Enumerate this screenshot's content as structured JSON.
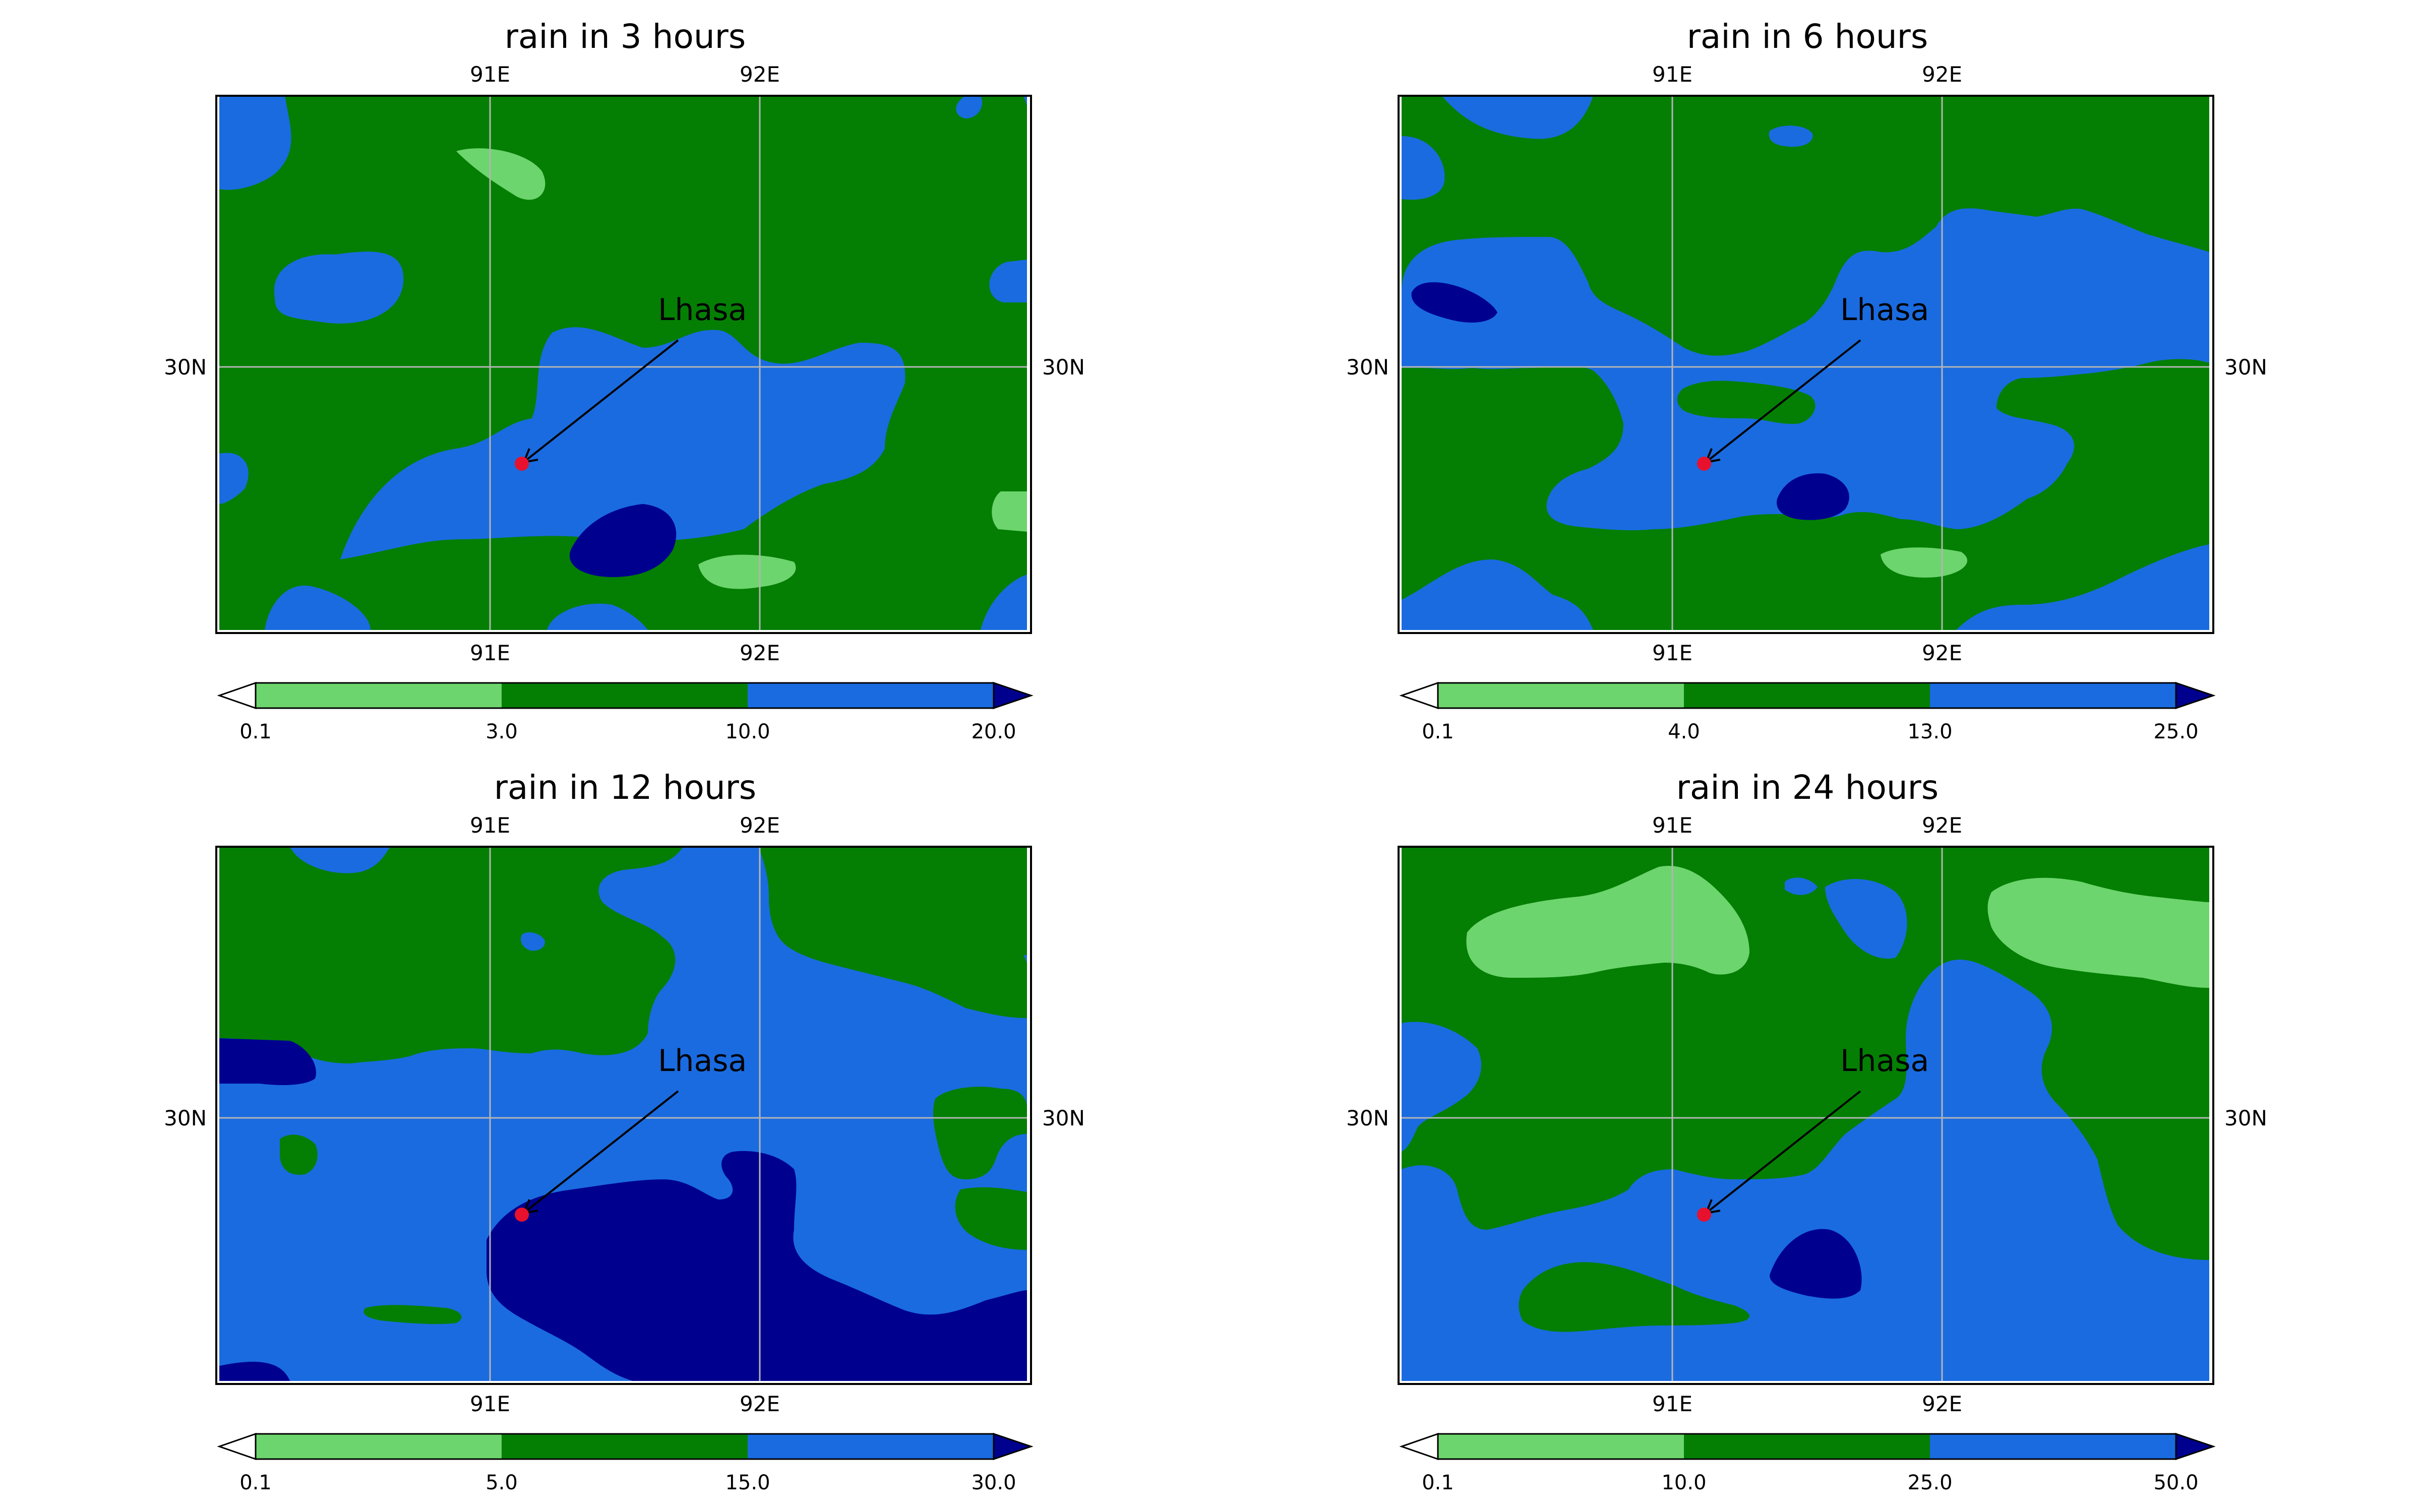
{
  "panels": [
    {
      "title": "rain in 3 hours",
      "lon_labels": [
        "91E",
        "92E"
      ],
      "lat_label": "30N",
      "city": "Lhasa",
      "colorbar": {
        "ticks": [
          "0.1",
          "3.0",
          "10.0",
          "20.0"
        ]
      }
    },
    {
      "title": "rain in 6 hours",
      "lon_labels": [
        "91E",
        "92E"
      ],
      "lat_label": "30N",
      "city": "Lhasa",
      "colorbar": {
        "ticks": [
          "0.1",
          "4.0",
          "13.0",
          "25.0"
        ]
      }
    },
    {
      "title": "rain in 12 hours",
      "lon_labels": [
        "91E",
        "92E"
      ],
      "lat_label": "30N",
      "city": "Lhasa",
      "colorbar": {
        "ticks": [
          "0.1",
          "5.0",
          "15.0",
          "30.0"
        ]
      }
    },
    {
      "title": "rain in 24 hours",
      "lon_labels": [
        "91E",
        "92E"
      ],
      "lat_label": "30N",
      "city": "Lhasa",
      "colorbar": {
        "ticks": [
          "0.1",
          "10.0",
          "25.0",
          "50.0"
        ]
      }
    }
  ],
  "colors": {
    "light_green": "#6dd56d",
    "green": "#047f04",
    "blue": "#1a6be0",
    "navy": "#00008f",
    "marker": "#e8112d",
    "grid": "#b4b4b4"
  }
}
